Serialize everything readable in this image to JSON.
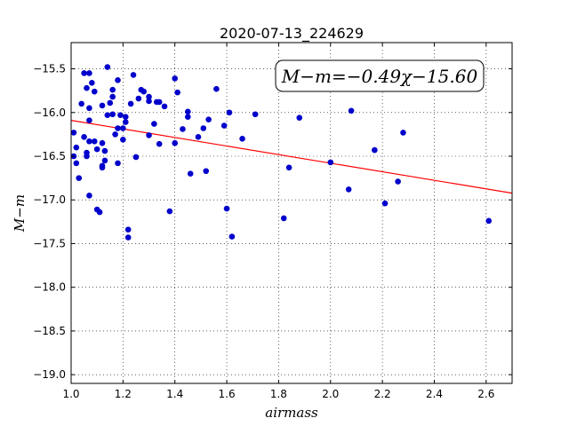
{
  "chart_data": {
    "type": "scatter",
    "title": "2020-07-13_224629",
    "xlabel": "airmass",
    "ylabel": "M−m",
    "xlim": [
      1.0,
      2.7
    ],
    "ylim": [
      -19.1,
      -15.2
    ],
    "x_ticks": [
      1.0,
      1.2,
      1.4,
      1.6,
      1.8,
      2.0,
      2.2,
      2.4,
      2.6
    ],
    "x_tick_labels": [
      "1.0",
      "1.2",
      "1.4",
      "1.6",
      "1.8",
      "2.0",
      "2.2",
      "2.4",
      "2.6"
    ],
    "y_ticks": [
      -15.5,
      -16.0,
      -16.5,
      -17.0,
      -17.5,
      -18.0,
      -18.5,
      -19.0
    ],
    "y_tick_labels": [
      "−15.5",
      "−16.0",
      "−16.5",
      "−17.0",
      "−17.5",
      "−18.0",
      "−18.5",
      "−19.0"
    ],
    "grid": true,
    "annotation": "M−m=−0.49χ−15.60",
    "fit_line": {
      "slope": -0.49,
      "intercept": -15.6,
      "color": "#ff0000"
    },
    "point_color": "#0000cc",
    "points": [
      [
        1.01,
        -16.23
      ],
      [
        1.01,
        -16.5
      ],
      [
        1.02,
        -16.58
      ],
      [
        1.02,
        -16.4
      ],
      [
        1.03,
        -16.75
      ],
      [
        1.04,
        -15.9
      ],
      [
        1.05,
        -16.28
      ],
      [
        1.05,
        -15.55
      ],
      [
        1.06,
        -15.72
      ],
      [
        1.06,
        -16.5
      ],
      [
        1.06,
        -16.46
      ],
      [
        1.07,
        -15.55
      ],
      [
        1.07,
        -16.33
      ],
      [
        1.07,
        -16.95
      ],
      [
        1.07,
        -15.95
      ],
      [
        1.07,
        -16.09
      ],
      [
        1.08,
        -15.66
      ],
      [
        1.09,
        -15.76
      ],
      [
        1.09,
        -16.33
      ],
      [
        1.1,
        -16.42
      ],
      [
        1.1,
        -17.11
      ],
      [
        1.11,
        -17.14
      ],
      [
        1.12,
        -15.92
      ],
      [
        1.12,
        -16.63
      ],
      [
        1.12,
        -16.61
      ],
      [
        1.12,
        -16.35
      ],
      [
        1.13,
        -16.44
      ],
      [
        1.13,
        -16.55
      ],
      [
        1.14,
        -16.03
      ],
      [
        1.14,
        -15.48
      ],
      [
        1.15,
        -15.89
      ],
      [
        1.16,
        -16.02
      ],
      [
        1.16,
        -15.82
      ],
      [
        1.16,
        -15.74
      ],
      [
        1.17,
        -16.25
      ],
      [
        1.18,
        -16.58
      ],
      [
        1.18,
        -16.18
      ],
      [
        1.18,
        -15.63
      ],
      [
        1.19,
        -16.03
      ],
      [
        1.2,
        -16.18
      ],
      [
        1.2,
        -16.31
      ],
      [
        1.21,
        -16.11
      ],
      [
        1.21,
        -16.05
      ],
      [
        1.22,
        -17.34
      ],
      [
        1.22,
        -17.43
      ],
      [
        1.23,
        -15.9
      ],
      [
        1.24,
        -15.57
      ],
      [
        1.25,
        -16.51
      ],
      [
        1.26,
        -15.84
      ],
      [
        1.27,
        -15.74
      ],
      [
        1.28,
        -15.76
      ],
      [
        1.3,
        -15.82
      ],
      [
        1.3,
        -15.87
      ],
      [
        1.3,
        -16.26
      ],
      [
        1.32,
        -16.13
      ],
      [
        1.33,
        -15.88
      ],
      [
        1.34,
        -15.88
      ],
      [
        1.34,
        -16.36
      ],
      [
        1.36,
        -15.93
      ],
      [
        1.38,
        -17.13
      ],
      [
        1.4,
        -15.61
      ],
      [
        1.4,
        -16.35
      ],
      [
        1.41,
        -15.77
      ],
      [
        1.43,
        -16.19
      ],
      [
        1.45,
        -15.99
      ],
      [
        1.45,
        -16.05
      ],
      [
        1.46,
        -16.7
      ],
      [
        1.49,
        -16.28
      ],
      [
        1.51,
        -16.18
      ],
      [
        1.52,
        -16.67
      ],
      [
        1.53,
        -16.08
      ],
      [
        1.56,
        -15.73
      ],
      [
        1.59,
        -16.15
      ],
      [
        1.6,
        -17.1
      ],
      [
        1.61,
        -16.0
      ],
      [
        1.62,
        -17.42
      ],
      [
        1.66,
        -16.3
      ],
      [
        1.71,
        -16.02
      ],
      [
        1.82,
        -17.21
      ],
      [
        1.84,
        -16.63
      ],
      [
        1.88,
        -16.06
      ],
      [
        2.0,
        -16.57
      ],
      [
        2.07,
        -16.88
      ],
      [
        2.08,
        -15.98
      ],
      [
        2.17,
        -16.43
      ],
      [
        2.21,
        -17.04
      ],
      [
        2.26,
        -16.79
      ],
      [
        2.28,
        -16.23
      ],
      [
        2.61,
        -17.24
      ]
    ]
  }
}
